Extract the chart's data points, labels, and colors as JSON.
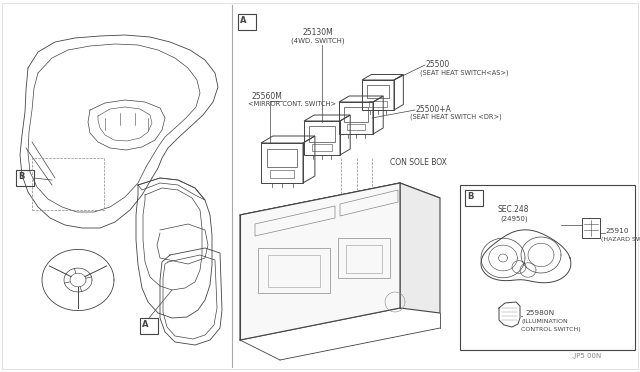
{
  "bg_color": "#ffffff",
  "line_color": "#444444",
  "labels": {
    "25130M_1": "25130M",
    "25130M_2": "(4WD. SWITCH)",
    "25560M_1": "25560M",
    "25560M_2": "<MIRROR CONT. SWITCH>",
    "25500_1": "25500",
    "25500_2": "(SEAT HEAT SWITCH<AS>)",
    "25500A_1": "25500+A",
    "25500A_2": "(SEAT HEAT SWITCH <DR>)",
    "console": "CON SOLE BOX",
    "sec248_1": "SEC.248",
    "sec248_2": "(24950)",
    "25910_1": "25910",
    "25910_2": "(HAZARD SWITCH)",
    "25980N_1": "25980N",
    "25980N_2": "(ILLUMINATION",
    "25980N_3": "CONTROL SWITCH)",
    "label_A_left": "A",
    "label_B_left": "B",
    "label_A_right": "A",
    "label_B_right": "B",
    "copyright": ".JP5 00N"
  },
  "colors": {
    "black": "#000000",
    "white": "#ffffff",
    "dark": "#444444",
    "mid": "#777777",
    "light": "#aaaaaa",
    "divider": "#999999"
  }
}
